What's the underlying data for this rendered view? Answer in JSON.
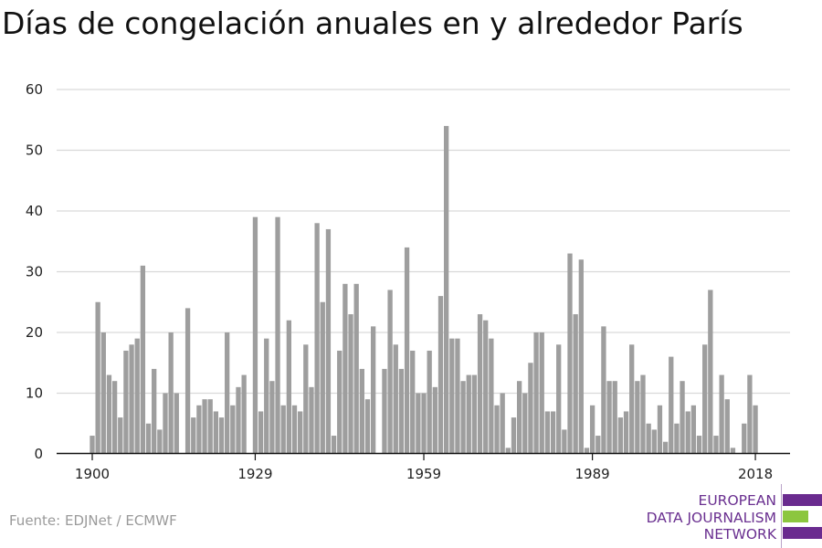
{
  "title": "Días de congelación anuales en y alrededor París",
  "source": "Fuente: EDJNet / ECMWF",
  "logo": {
    "lines": [
      "EUROPEAN",
      "DATA JOURNALISM",
      "NETWORK"
    ],
    "colors": {
      "purple": "#6a2b8f",
      "green": "#8cc63f"
    }
  },
  "colors": {
    "bar": "#9e9e9e",
    "grid": "#d9d9d9",
    "axis": "#111111"
  },
  "chart_data": {
    "type": "bar",
    "title": "Días de congelación anuales en y alrededor París",
    "xlabel": "",
    "ylabel": "",
    "ylim": [
      0,
      60
    ],
    "xlim": [
      1900,
      2018
    ],
    "yticks": [
      0,
      10,
      20,
      30,
      40,
      50,
      60
    ],
    "xticks": [
      1900,
      1929,
      1959,
      1989,
      2018
    ],
    "grid": true,
    "categories": [
      1900,
      1901,
      1902,
      1903,
      1904,
      1905,
      1906,
      1907,
      1908,
      1909,
      1910,
      1911,
      1912,
      1913,
      1914,
      1915,
      1916,
      1917,
      1918,
      1919,
      1920,
      1921,
      1922,
      1923,
      1924,
      1925,
      1926,
      1927,
      1928,
      1929,
      1930,
      1931,
      1932,
      1933,
      1934,
      1935,
      1936,
      1937,
      1938,
      1939,
      1940,
      1941,
      1942,
      1943,
      1944,
      1945,
      1946,
      1947,
      1948,
      1949,
      1950,
      1951,
      1952,
      1953,
      1954,
      1955,
      1956,
      1957,
      1958,
      1959,
      1960,
      1961,
      1962,
      1963,
      1964,
      1965,
      1966,
      1967,
      1968,
      1969,
      1970,
      1971,
      1972,
      1973,
      1974,
      1975,
      1976,
      1977,
      1978,
      1979,
      1980,
      1981,
      1982,
      1983,
      1984,
      1985,
      1986,
      1987,
      1988,
      1989,
      1990,
      1991,
      1992,
      1993,
      1994,
      1995,
      1996,
      1997,
      1998,
      1999,
      2000,
      2001,
      2002,
      2003,
      2004,
      2005,
      2006,
      2007,
      2008,
      2009,
      2010,
      2011,
      2012,
      2013,
      2014,
      2015,
      2016,
      2017,
      2018
    ],
    "values": [
      3,
      25,
      20,
      13,
      12,
      6,
      17,
      18,
      19,
      31,
      5,
      14,
      4,
      10,
      20,
      10,
      0,
      24,
      6,
      8,
      9,
      9,
      7,
      6,
      20,
      8,
      11,
      13,
      0,
      39,
      7,
      19,
      12,
      39,
      8,
      22,
      8,
      7,
      18,
      11,
      38,
      25,
      37,
      3,
      17,
      28,
      23,
      28,
      14,
      9,
      21,
      0,
      14,
      27,
      18,
      14,
      34,
      17,
      10,
      10,
      17,
      11,
      26,
      54,
      19,
      19,
      12,
      13,
      13,
      23,
      22,
      19,
      8,
      10,
      1,
      6,
      12,
      10,
      15,
      20,
      20,
      7,
      7,
      18,
      4,
      33,
      23,
      32,
      1,
      8,
      3,
      21,
      12,
      12,
      6,
      7,
      18,
      12,
      13,
      5,
      4,
      8,
      2,
      16,
      5,
      12,
      7,
      8,
      3,
      18,
      27,
      3,
      13,
      9,
      1,
      0,
      5,
      13,
      8
    ]
  }
}
